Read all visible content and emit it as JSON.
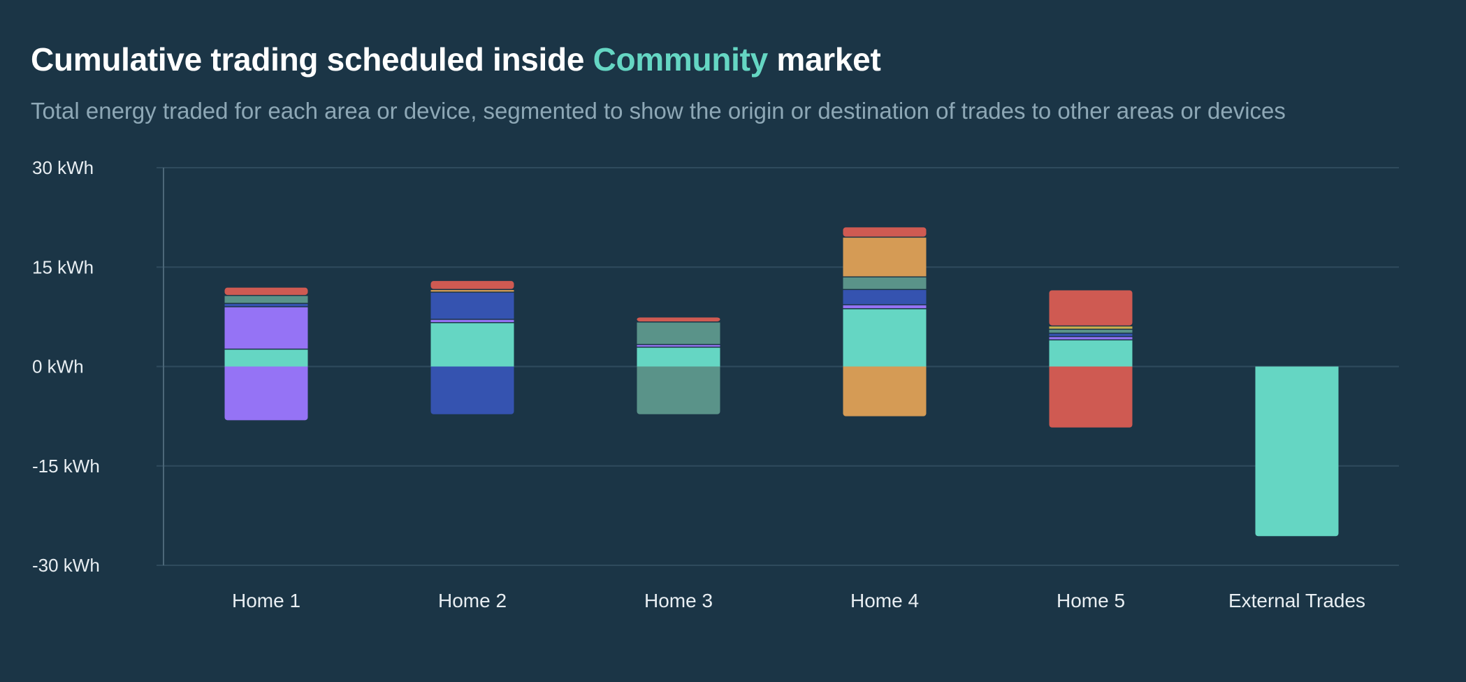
{
  "header": {
    "title_before": "Cumulative trading scheduled inside",
    "title_accent": "Community",
    "title_after": "market",
    "subtitle": "Total energy traded for each area or device, segmented to show the origin or destination of trades to other areas or devices"
  },
  "colors": {
    "background": "#1b3546",
    "accent": "#65d6c3",
    "grid": "#2f4b5d",
    "axis": "#4d6879",
    "teal": "#65d6c3",
    "purple": "#9573f5",
    "blue": "#3553b0",
    "gray_green": "#5a9389",
    "orange": "#d59b55",
    "red": "#cf5a52",
    "yellow": "#c9b04e"
  },
  "chart_data": {
    "type": "bar",
    "stacked": true,
    "unit": "kWh",
    "ylim": [
      -30,
      30
    ],
    "yticks": [
      30,
      15,
      0,
      -15,
      -30
    ],
    "ytick_labels": [
      "30 kWh",
      "15 kWh",
      "0 kWh",
      "-15 kWh",
      "-30 kWh"
    ],
    "categories": [
      "Home 1",
      "Home 2",
      "Home 3",
      "Home 4",
      "Home 5",
      "External Trades"
    ],
    "grid": true,
    "bars": [
      {
        "category": "Home 1",
        "positive": [
          {
            "color": "teal",
            "value": 2.7
          },
          {
            "color": "purple",
            "value": 6.4
          },
          {
            "color": "blue",
            "value": 0.5
          },
          {
            "color": "gray_green",
            "value": 1.2
          },
          {
            "color": "red",
            "value": 1.1
          }
        ],
        "negative": [
          {
            "color": "purple",
            "value": -8.1
          }
        ]
      },
      {
        "category": "Home 2",
        "positive": [
          {
            "color": "teal",
            "value": 6.7
          },
          {
            "color": "purple",
            "value": 0.5
          },
          {
            "color": "blue",
            "value": 4.1
          },
          {
            "color": "orange",
            "value": 0.4
          },
          {
            "color": "red",
            "value": 1.2
          }
        ],
        "negative": [
          {
            "color": "blue",
            "value": -7.2
          }
        ]
      },
      {
        "category": "Home 3",
        "positive": [
          {
            "color": "teal",
            "value": 3.0
          },
          {
            "color": "purple",
            "value": 0.4
          },
          {
            "color": "gray_green",
            "value": 3.4
          },
          {
            "color": "red",
            "value": 0.6
          }
        ],
        "negative": [
          {
            "color": "gray_green",
            "value": -7.2
          }
        ]
      },
      {
        "category": "Home 4",
        "positive": [
          {
            "color": "teal",
            "value": 8.8
          },
          {
            "color": "purple",
            "value": 0.6
          },
          {
            "color": "blue",
            "value": 2.3
          },
          {
            "color": "gray_green",
            "value": 1.9
          },
          {
            "color": "orange",
            "value": 6.0
          },
          {
            "color": "red",
            "value": 1.4
          }
        ],
        "negative": [
          {
            "color": "orange",
            "value": -7.5
          }
        ]
      },
      {
        "category": "Home 5",
        "positive": [
          {
            "color": "teal",
            "value": 4.1
          },
          {
            "color": "purple",
            "value": 0.5
          },
          {
            "color": "blue",
            "value": 0.5
          },
          {
            "color": "gray_green",
            "value": 0.6
          },
          {
            "color": "yellow",
            "value": 0.5
          },
          {
            "color": "red",
            "value": 5.3
          }
        ],
        "negative": [
          {
            "color": "red",
            "value": -9.2
          }
        ]
      },
      {
        "category": "External Trades",
        "positive": [],
        "negative": [
          {
            "color": "teal",
            "value": -25.6
          }
        ]
      }
    ]
  }
}
